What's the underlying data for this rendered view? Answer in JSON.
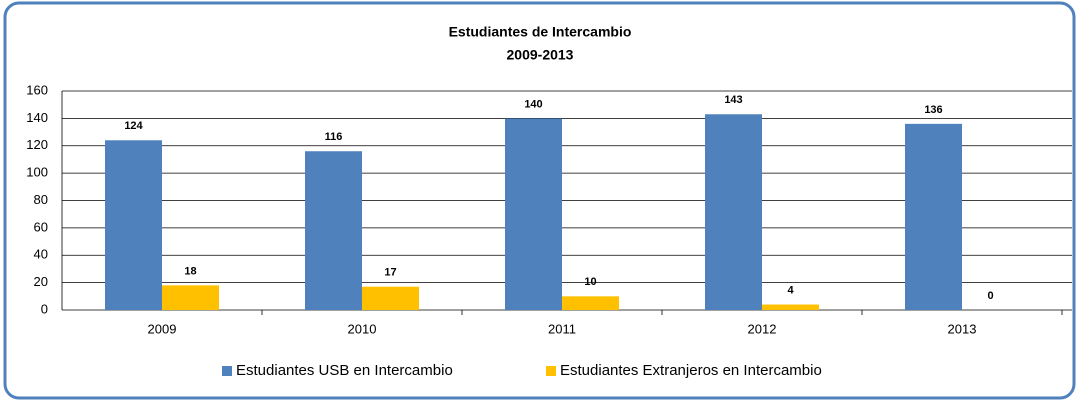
{
  "chart_data": {
    "type": "bar",
    "title": "Estudiantes de Intercambio",
    "subtitle": "2009-2013",
    "categories": [
      "2009",
      "2010",
      "2011",
      "2012",
      "2013"
    ],
    "series": [
      {
        "name": "Estudiantes USB en Intercambio",
        "color": "#4f81bd",
        "values": [
          124,
          116,
          140,
          143,
          136
        ]
      },
      {
        "name": "Estudiantes Extranjeros en Intercambio",
        "color": "#ffc000",
        "values": [
          18,
          17,
          10,
          4,
          0
        ]
      }
    ],
    "ylim": [
      0,
      160
    ],
    "yticks": [
      0,
      20,
      40,
      60,
      80,
      100,
      120,
      140,
      160
    ],
    "grid": true,
    "legend": "bottom"
  }
}
